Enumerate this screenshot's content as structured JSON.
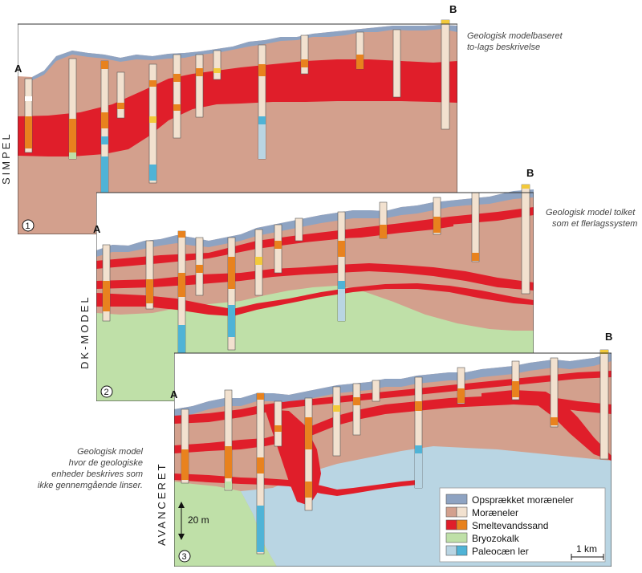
{
  "sections": [
    {
      "num": "1",
      "title": "SIMPEL",
      "a": "A",
      "b": "B",
      "note": [
        "Geologisk modelbaseret",
        "to-lags beskrivelse"
      ]
    },
    {
      "num": "2",
      "title": "DK-MODEL",
      "a": "A",
      "b": "B",
      "note": [
        "Geologisk model tolket",
        "som et flerlagssystem"
      ]
    },
    {
      "num": "3",
      "title": "AVANCERET",
      "a": "A",
      "b": "B",
      "note": [
        "Geologisk model",
        "hvor de geologiske",
        "enheder beskrives  som",
        "ikke gennemgående linser."
      ]
    }
  ],
  "scale": {
    "vertical": "20 m",
    "horizontal": "1 km"
  },
  "legend": [
    {
      "label": "Opsprækket moræneler",
      "color": "#8ea3c2",
      "color2": null
    },
    {
      "label": "Moræneler",
      "color": "#d3a08d",
      "color2": "#f2e1cf"
    },
    {
      "label": "Smeltevandssand",
      "color": "#e01e2a",
      "color2": "#e8821e"
    },
    {
      "label": "Bryozokalk",
      "color": "#bfe0a8",
      "color2": null
    },
    {
      "label": "Paleocæn ler",
      "color": "#b9d5e3",
      "color2": "#4fb3d6"
    }
  ]
}
